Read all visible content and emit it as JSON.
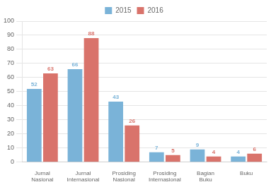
{
  "chart_data": {
    "type": "bar",
    "categories": [
      "Jurnal Nasional",
      "Jurnal Internasional",
      "Prosiding Nasional",
      "Prosiding\nInternasional",
      "Bagian Buku",
      "Buku"
    ],
    "series": [
      {
        "name": "2015",
        "color": "#7ab3d8",
        "values": [
          52,
          66,
          43,
          7,
          9,
          4
        ]
      },
      {
        "name": "2016",
        "color": "#d9736b",
        "values": [
          63,
          88,
          26,
          5,
          4,
          6
        ]
      }
    ],
    "ylim": [
      0,
      100
    ],
    "yticks": [
      0,
      10,
      20,
      30,
      40,
      50,
      60,
      70,
      80,
      90,
      100
    ],
    "grid": true,
    "legend": "top",
    "data_labels": true
  }
}
